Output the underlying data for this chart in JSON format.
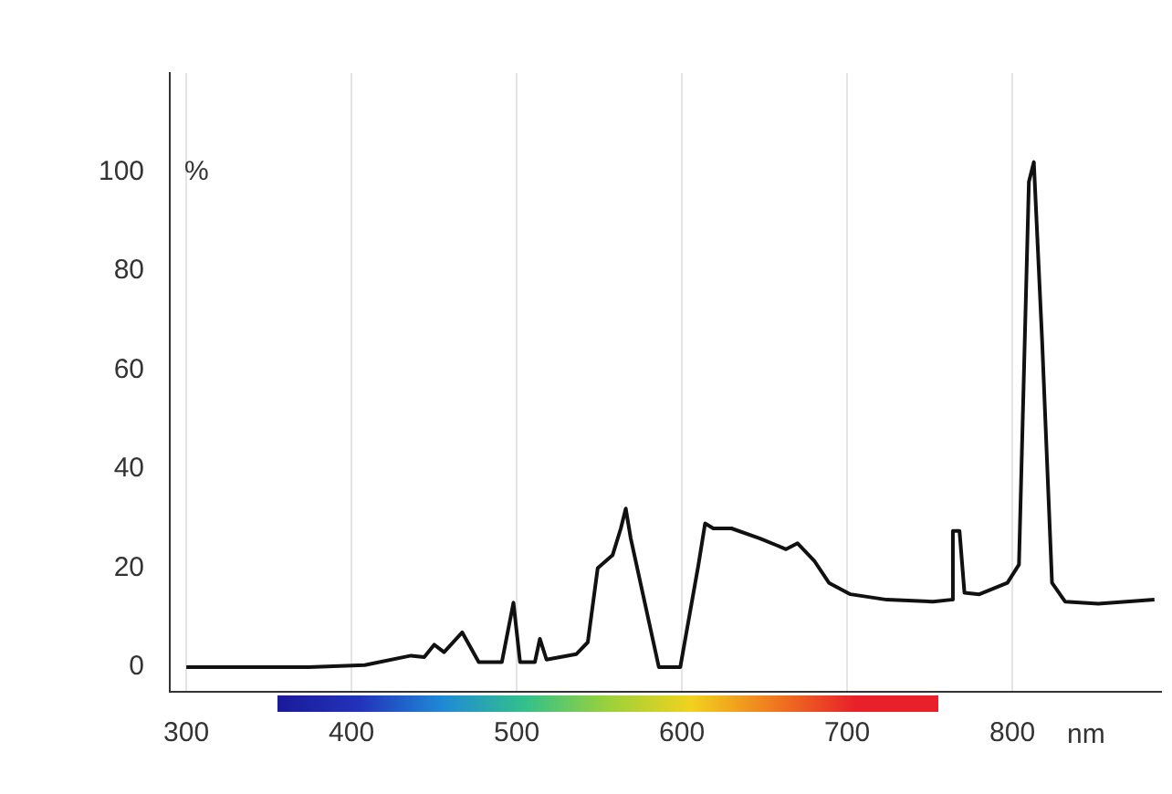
{
  "chart_data": {
    "type": "line",
    "xlabel": "nm",
    "ylabel": "%",
    "series": [
      {
        "color": "#111111",
        "x": [
          300,
          374,
          408,
          436,
          444,
          450,
          456,
          467,
          477,
          491,
          498,
          502,
          511,
          514,
          518,
          536,
          543,
          549,
          558,
          563,
          566,
          569,
          586,
          594,
          599,
          610,
          614,
          619,
          630,
          647,
          658,
          663,
          670,
          680,
          689,
          702,
          724,
          752,
          763,
          764,
          768,
          771,
          780,
          797,
          804,
          810,
          813,
          818,
          824,
          832,
          852,
          886
        ],
        "values": [
          0,
          0,
          0.4,
          2.3,
          2,
          4.5,
          3,
          7,
          1,
          1,
          13,
          1,
          1,
          5.7,
          1.5,
          2.6,
          5,
          20,
          22.6,
          28,
          32,
          26,
          0,
          0,
          0,
          20.7,
          29,
          28,
          28,
          26,
          24.5,
          23.8,
          25,
          21.5,
          17,
          14.7,
          13.6,
          13.2,
          13.6,
          27.5,
          27.5,
          15,
          14.7,
          17,
          20.7,
          98,
          102,
          66,
          17,
          13.2,
          12.8,
          13.6
        ]
      }
    ],
    "xlim": [
      290,
      890
    ],
    "xticks": [
      300,
      400,
      500,
      600,
      700,
      800
    ],
    "ylim": [
      -5,
      120
    ],
    "yticks": [
      0,
      20,
      40,
      60,
      80,
      100
    ],
    "grid": "x",
    "legend": false,
    "marker": "none",
    "line_style": "solid"
  }
}
